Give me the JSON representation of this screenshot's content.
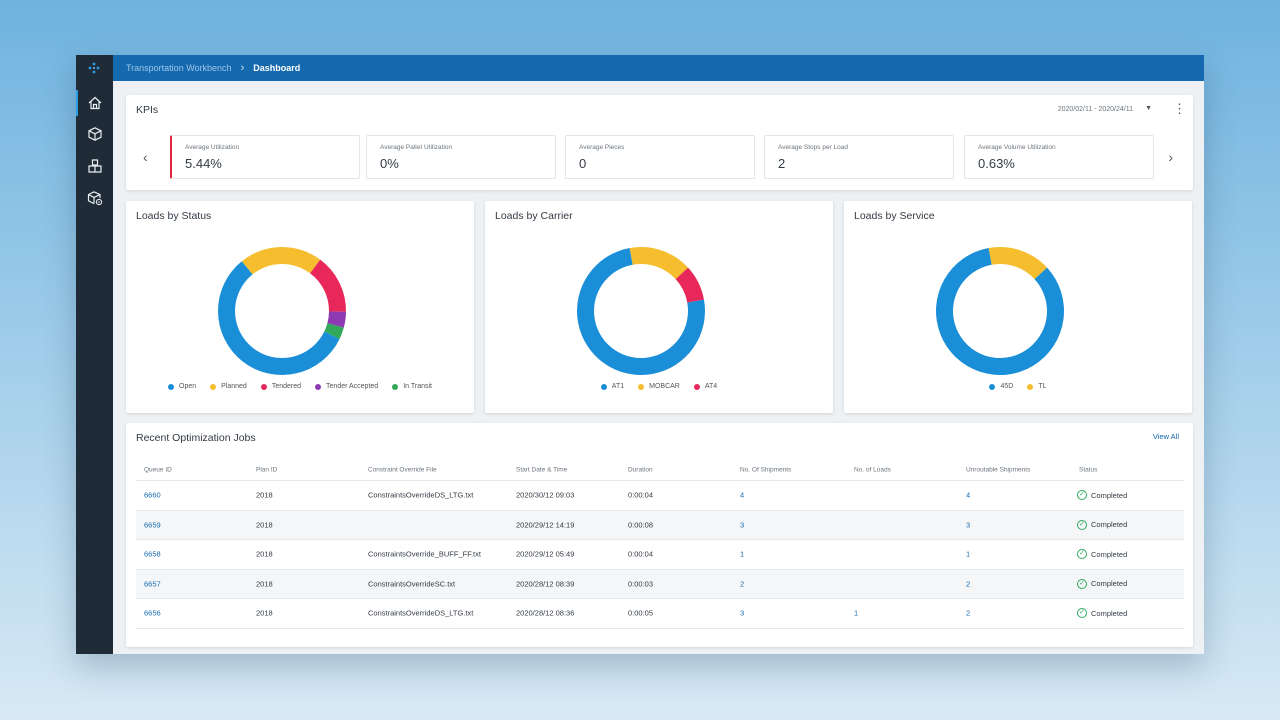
{
  "breadcrumb": {
    "parent": "Transportation Workbench",
    "separator": "›",
    "current": "Dashboard"
  },
  "sidebar": {
    "items": [
      {
        "icon": "home-icon",
        "active": true
      },
      {
        "icon": "package-icon",
        "active": false
      },
      {
        "icon": "boxes-icon",
        "active": false
      },
      {
        "icon": "package-settings-icon",
        "active": false
      }
    ]
  },
  "kpis": {
    "title": "KPIs",
    "date_range": "2020/02/11 - 2020/24/11",
    "tiles": [
      {
        "label": "Average Utilization",
        "value": "5.44%"
      },
      {
        "label": "Average Pallet Utilization",
        "value": "0%"
      },
      {
        "label": "Average Pieces",
        "value": "0"
      },
      {
        "label": "Average Stops per Load",
        "value": "2"
      },
      {
        "label": "Average Volume Utilization",
        "value": "0.63%"
      }
    ]
  },
  "charts": [
    {
      "title": "Loads by Status"
    },
    {
      "title": "Loads by Carrier"
    },
    {
      "title": "Loads by Service"
    }
  ],
  "chart_data": [
    {
      "type": "pie",
      "title": "Loads by Status",
      "donut": true,
      "slices": [
        {
          "label": "Open",
          "value": 57,
          "color": "#1a8fd8"
        },
        {
          "label": "Planned",
          "value": 21,
          "color": "#f6be2e"
        },
        {
          "label": "Tendered",
          "value": 15,
          "color": "#e8285a"
        },
        {
          "label": "Tender Accepted",
          "value": 4,
          "color": "#8e3bb3"
        },
        {
          "label": "In Transit",
          "value": 3,
          "color": "#32a85a"
        }
      ]
    },
    {
      "type": "pie",
      "title": "Loads by Carrier",
      "donut": true,
      "slices": [
        {
          "label": "AT1",
          "value": 75,
          "color": "#1a8fd8"
        },
        {
          "label": "MOBCAR",
          "value": 16,
          "color": "#f6be2e"
        },
        {
          "label": "AT4",
          "value": 9,
          "color": "#e8285a"
        }
      ]
    },
    {
      "type": "pie",
      "title": "Loads by Service",
      "donut": true,
      "slices": [
        {
          "label": "45D",
          "value": 84,
          "color": "#1a8fd8"
        },
        {
          "label": "TL",
          "value": 16,
          "color": "#f6be2e"
        }
      ]
    }
  ],
  "jobs": {
    "title": "Recent Optimization Jobs",
    "view_all": "View All",
    "columns": [
      "Queue ID",
      "Plan ID",
      "Constraint Override File",
      "Start Date & Time",
      "Duration",
      "No. Of Shipments",
      "No. of Loads",
      "Unroutable Shipments",
      "Status"
    ],
    "rows": [
      {
        "queue_id": "6660",
        "plan_id": "2018",
        "file": "ConstraintsOverrideDS_LTG.txt",
        "start": "2020/30/12 09:03",
        "duration": "0:00:04",
        "shipments": "4",
        "loads": "",
        "unroutable": "4",
        "status": "Completed"
      },
      {
        "queue_id": "6659",
        "plan_id": "2018",
        "file": "",
        "start": "2020/29/12 14:19",
        "duration": "0:00:08",
        "shipments": "3",
        "loads": "",
        "unroutable": "3",
        "status": "Completed"
      },
      {
        "queue_id": "6658",
        "plan_id": "2018",
        "file": "ConstraintsOverride_BUFF_FF.txt",
        "start": "2020/29/12 05:49",
        "duration": "0:00:04",
        "shipments": "1",
        "loads": "",
        "unroutable": "1",
        "status": "Completed"
      },
      {
        "queue_id": "6657",
        "plan_id": "2018",
        "file": "ConstraintsOverrideSC.txt",
        "start": "2020/28/12 08:39",
        "duration": "0:00:03",
        "shipments": "2",
        "loads": "",
        "unroutable": "2",
        "status": "Completed"
      },
      {
        "queue_id": "6656",
        "plan_id": "2018",
        "file": "ConstraintsOverrideDS_LTG.txt",
        "start": "2020/28/12 08:36",
        "duration": "0:00:05",
        "shipments": "3",
        "loads": "1",
        "unroutable": "2",
        "status": "Completed"
      }
    ]
  }
}
